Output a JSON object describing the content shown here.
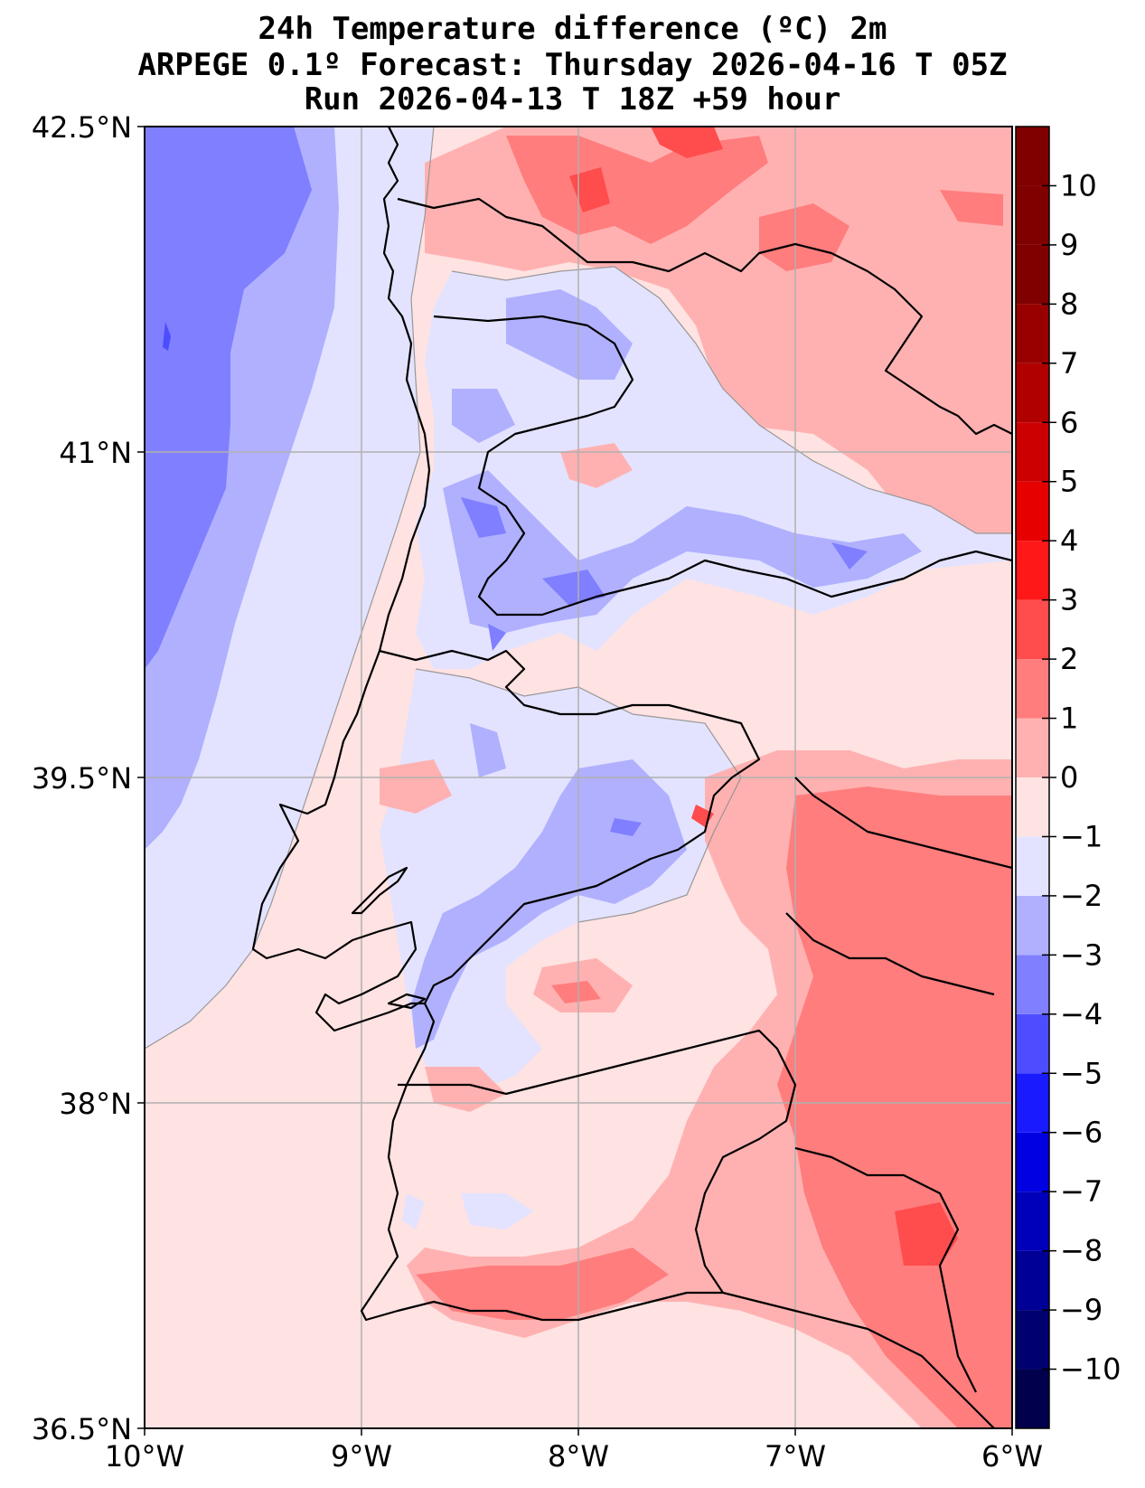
{
  "title": {
    "line1": "24h Temperature difference (ºC) 2m",
    "line2": "ARPEGE 0.1º Forecast: Thursday 2026-04-16 T 05Z",
    "line3": "Run 2026-04-13 T 18Z +59 hour"
  },
  "map": {
    "extent": {
      "lon_min": -10,
      "lon_max": -6,
      "lat_min": 36.5,
      "lat_max": 42.5
    },
    "lon_ticks": [
      {
        "value": -10,
        "label": "10°W"
      },
      {
        "value": -9,
        "label": "9°W"
      },
      {
        "value": -8,
        "label": "8°W"
      },
      {
        "value": -7,
        "label": "7°W"
      },
      {
        "value": -6,
        "label": "6°W"
      }
    ],
    "lat_ticks": [
      {
        "value": 42.5,
        "label": "42.5°N"
      },
      {
        "value": 41,
        "label": "41°N"
      },
      {
        "value": 39.5,
        "label": "39.5°N"
      },
      {
        "value": 38,
        "label": "38°N"
      },
      {
        "value": 36.5,
        "label": "36.5°N"
      }
    ],
    "gridlines": true,
    "colormap": "bwr"
  },
  "colorbar": {
    "levels": [
      -11,
      -10,
      -9,
      -8,
      -7,
      -6,
      -5,
      -4,
      -3,
      -2,
      -1,
      0,
      1,
      2,
      3,
      4,
      5,
      6,
      7,
      8,
      9,
      10,
      11
    ],
    "labels": [
      "−10",
      "−9",
      "−8",
      "−7",
      "−6",
      "−5",
      "−4",
      "−3",
      "−2",
      "−1",
      "0",
      "1",
      "2",
      "3",
      "4",
      "5",
      "6",
      "7",
      "8",
      "9",
      "10"
    ],
    "label_values": [
      -10,
      -9,
      -8,
      -7,
      -6,
      -5,
      -4,
      -3,
      -2,
      -1,
      0,
      1,
      2,
      3,
      4,
      5,
      6,
      7,
      8,
      9,
      10
    ],
    "colors": [
      "#00004c",
      "#000071",
      "#000096",
      "#0000bb",
      "#0000e0",
      "#1a1aff",
      "#4d4dff",
      "#7f7fff",
      "#b0b0ff",
      "#e3e3ff",
      "#ffe2e2",
      "#ffb1b1",
      "#ff7d7d",
      "#ff4c4c",
      "#ff1818",
      "#e60000",
      "#cc0000",
      "#b10000",
      "#980000",
      "#800000",
      "#800000",
      "#800000"
    ]
  }
}
